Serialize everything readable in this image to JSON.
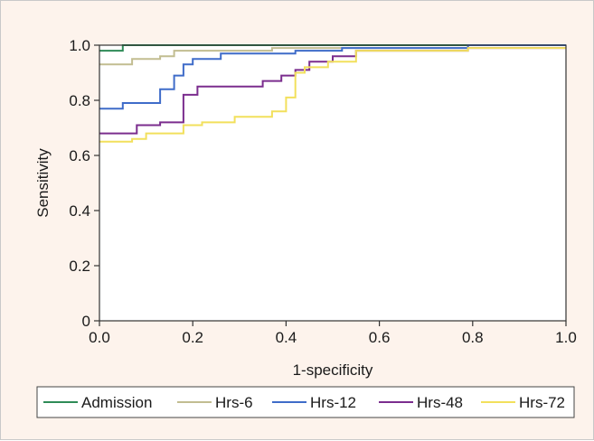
{
  "chart_data": {
    "type": "line",
    "title": "",
    "xlabel": "1-specificity",
    "ylabel": "Sensitivity",
    "xlim": [
      0,
      1
    ],
    "ylim": [
      0,
      1
    ],
    "x_ticks": [
      "0.0",
      "0.2",
      "0.4",
      "0.6",
      "0.8",
      "1.0"
    ],
    "y_ticks": [
      "0",
      "0.2",
      "0.4",
      "0.6",
      "0.8",
      "1.0"
    ],
    "grid": false,
    "legend_position": "bottom",
    "series": [
      {
        "name": "Admission",
        "color": "#2e8b57",
        "points": [
          [
            0,
            0.98
          ],
          [
            0.05,
            0.98
          ],
          [
            0.05,
            1.0
          ],
          [
            1,
            1.0
          ]
        ]
      },
      {
        "name": "Hrs-6",
        "color": "#c2bd91",
        "points": [
          [
            0,
            0.93
          ],
          [
            0.07,
            0.93
          ],
          [
            0.07,
            0.95
          ],
          [
            0.13,
            0.95
          ],
          [
            0.13,
            0.96
          ],
          [
            0.16,
            0.96
          ],
          [
            0.16,
            0.98
          ],
          [
            0.37,
            0.98
          ],
          [
            0.37,
            0.99
          ],
          [
            0.79,
            0.99
          ],
          [
            0.79,
            1.0
          ],
          [
            1,
            1.0
          ]
        ]
      },
      {
        "name": "Hrs-12",
        "color": "#3f6cc9",
        "points": [
          [
            0,
            0.77
          ],
          [
            0.05,
            0.77
          ],
          [
            0.05,
            0.79
          ],
          [
            0.13,
            0.79
          ],
          [
            0.13,
            0.84
          ],
          [
            0.16,
            0.84
          ],
          [
            0.16,
            0.89
          ],
          [
            0.18,
            0.89
          ],
          [
            0.18,
            0.93
          ],
          [
            0.2,
            0.93
          ],
          [
            0.2,
            0.95
          ],
          [
            0.26,
            0.95
          ],
          [
            0.26,
            0.97
          ],
          [
            0.42,
            0.97
          ],
          [
            0.42,
            0.98
          ],
          [
            0.52,
            0.98
          ],
          [
            0.52,
            0.99
          ],
          [
            0.79,
            0.99
          ],
          [
            0.79,
            1.0
          ],
          [
            1,
            1.0
          ]
        ]
      },
      {
        "name": "Hrs-48",
        "color": "#7b2d8e",
        "points": [
          [
            0,
            0.68
          ],
          [
            0.08,
            0.68
          ],
          [
            0.08,
            0.71
          ],
          [
            0.13,
            0.71
          ],
          [
            0.13,
            0.72
          ],
          [
            0.18,
            0.72
          ],
          [
            0.18,
            0.82
          ],
          [
            0.21,
            0.82
          ],
          [
            0.21,
            0.85
          ],
          [
            0.35,
            0.85
          ],
          [
            0.35,
            0.87
          ],
          [
            0.39,
            0.87
          ],
          [
            0.39,
            0.89
          ],
          [
            0.42,
            0.89
          ],
          [
            0.42,
            0.91
          ],
          [
            0.45,
            0.91
          ],
          [
            0.45,
            0.94
          ],
          [
            0.5,
            0.94
          ],
          [
            0.5,
            0.96
          ],
          [
            0.55,
            0.96
          ],
          [
            0.55,
            0.98
          ],
          [
            0.79,
            0.98
          ],
          [
            0.79,
            0.99
          ],
          [
            1,
            0.99
          ]
        ]
      },
      {
        "name": "Hrs-72",
        "color": "#f2e05c",
        "points": [
          [
            0,
            0.65
          ],
          [
            0.07,
            0.65
          ],
          [
            0.07,
            0.66
          ],
          [
            0.1,
            0.66
          ],
          [
            0.1,
            0.68
          ],
          [
            0.18,
            0.68
          ],
          [
            0.18,
            0.71
          ],
          [
            0.22,
            0.71
          ],
          [
            0.22,
            0.72
          ],
          [
            0.29,
            0.72
          ],
          [
            0.29,
            0.74
          ],
          [
            0.37,
            0.74
          ],
          [
            0.37,
            0.76
          ],
          [
            0.4,
            0.76
          ],
          [
            0.4,
            0.81
          ],
          [
            0.42,
            0.81
          ],
          [
            0.42,
            0.9
          ],
          [
            0.44,
            0.9
          ],
          [
            0.44,
            0.92
          ],
          [
            0.49,
            0.92
          ],
          [
            0.49,
            0.94
          ],
          [
            0.55,
            0.94
          ],
          [
            0.55,
            0.98
          ],
          [
            0.79,
            0.98
          ],
          [
            0.79,
            0.99
          ],
          [
            1,
            0.99
          ]
        ]
      }
    ]
  }
}
